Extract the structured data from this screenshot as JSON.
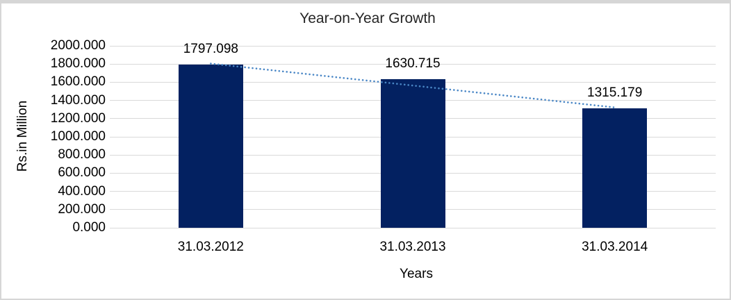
{
  "chart_data": {
    "type": "bar",
    "title": "Year-on-Year Growth",
    "xlabel": "Years",
    "ylabel": "Rs.in Million",
    "categories": [
      "31.03.2012",
      "31.03.2013",
      "31.03.2014"
    ],
    "values": [
      1797.098,
      1630.715,
      1315.179
    ],
    "data_labels": [
      "1797.098",
      "1630.715",
      "1315.179"
    ],
    "ylim": [
      0,
      2000
    ],
    "ytick_step": 200,
    "ytick_labels": [
      "0.000",
      "200.000",
      "400.000",
      "600.000",
      "800.000",
      "1000.000",
      "1200.000",
      "1400.000",
      "1600.000",
      "1800.000",
      "2000.000"
    ],
    "grid": true,
    "legend_position": "none",
    "colors": {
      "bar": "#032161",
      "trendline": "#4a87c6",
      "gridline": "#d9d9d9",
      "frame_border": "#d6d6d6",
      "background": "#ffffff",
      "text": "#000000"
    },
    "trendline": {
      "style": "dotted",
      "from_value": 1797.098,
      "to_value": 1315.179,
      "spans": "first-bar-top to last-bar-top"
    }
  }
}
